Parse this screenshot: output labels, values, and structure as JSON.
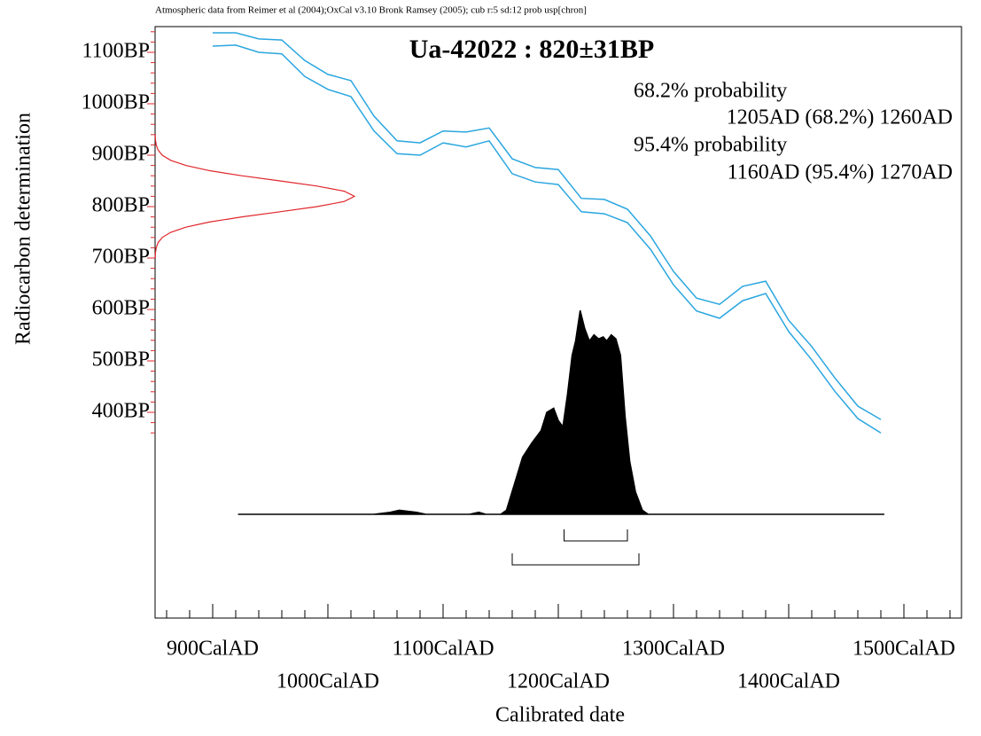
{
  "chart_data": {
    "type": "calibration",
    "title": "Ua-42022 : 820±31BP",
    "subtitle": "Atmospheric data from Reimer et al (2004);OxCal v3.10 Bronk Ramsey (2005); cub r:5 sd:12 prob usp[chron]",
    "x_label": "Calibrated date",
    "y_label": "Radiocarbon determination",
    "xlim": [
      850,
      1550
    ],
    "ylim": [
      0,
      1150
    ],
    "xticks": [
      {
        "value": 900,
        "label": "900CalAD"
      },
      {
        "value": 1000,
        "label": "1000CalAD"
      },
      {
        "value": 1100,
        "label": "1100CalAD"
      },
      {
        "value": 1200,
        "label": "1200CalAD"
      },
      {
        "value": 1300,
        "label": "1300CalAD"
      },
      {
        "value": 1400,
        "label": "1400CalAD"
      },
      {
        "value": 1500,
        "label": "1500CalAD"
      }
    ],
    "xminorticks": [
      860,
      880,
      920,
      940,
      960,
      980,
      1020,
      1040,
      1060,
      1080,
      1120,
      1140,
      1160,
      1180,
      1220,
      1240,
      1260,
      1280,
      1320,
      1340,
      1360,
      1380,
      1420,
      1440,
      1460,
      1480,
      1520,
      1540
    ],
    "yticks": [
      {
        "value": 400,
        "label": "400BP"
      },
      {
        "value": 500,
        "label": "500BP"
      },
      {
        "value": 600,
        "label": "600BP"
      },
      {
        "value": 700,
        "label": "700BP"
      },
      {
        "value": 800,
        "label": "800BP"
      },
      {
        "value": 900,
        "label": "900BP"
      },
      {
        "value": 1000,
        "label": "1000BP"
      },
      {
        "value": 1100,
        "label": "1100BP"
      }
    ],
    "yminorticks": [
      360,
      380,
      420,
      440,
      460,
      480,
      520,
      540,
      560,
      580,
      620,
      640,
      660,
      680,
      720,
      740,
      760,
      780,
      820,
      840,
      860,
      880,
      920,
      940,
      960,
      980,
      1020,
      1040,
      1060,
      1080,
      1120,
      1140
    ],
    "x": [
      900,
      920,
      940,
      960,
      980,
      1000,
      1020,
      1040,
      1060,
      1080,
      1100,
      1120,
      1140,
      1160,
      1180,
      1200,
      1220,
      1240,
      1260,
      1280,
      1300,
      1320,
      1340,
      1360,
      1380,
      1400,
      1420,
      1440,
      1460,
      1480
    ],
    "series": [
      {
        "color": "#2aa6df",
        "values": [
          1138,
          1138,
          1126,
          1124,
          1084,
          1057,
          1045,
          976,
          928,
          924,
          947,
          945,
          953,
          893,
          876,
          872,
          816,
          814,
          795,
          743,
          674,
          622,
          610,
          645,
          655,
          579,
          528,
          467,
          412,
          386
        ]
      },
      {
        "color": "#2aa6df",
        "values": [
          1112,
          1114,
          1100,
          1097,
          1053,
          1028,
          1014,
          947,
          903,
          900,
          924,
          916,
          928,
          864,
          848,
          843,
          790,
          786,
          769,
          717,
          648,
          597,
          583,
          617,
          631,
          557,
          502,
          441,
          388,
          360
        ]
      }
    ],
    "radiocarbon": {
      "color": "#e0262b",
      "bp": [
        700,
        710,
        720,
        730,
        740,
        750,
        760,
        770,
        780,
        790,
        800,
        810,
        820,
        830,
        840,
        850,
        860,
        870,
        880,
        890,
        900,
        910,
        920,
        930,
        940
      ],
      "probability": [
        0.001,
        0.002,
        0.006,
        0.015,
        0.036,
        0.078,
        0.154,
        0.272,
        0.435,
        0.626,
        0.812,
        0.949,
        1,
        0.949,
        0.812,
        0.626,
        0.435,
        0.272,
        0.154,
        0.078,
        0.036,
        0.015,
        0.006,
        0.002,
        0.001
      ]
    },
    "calibrated": {
      "color": "#000000",
      "x": [
        922,
        1040,
        1054,
        1062,
        1077,
        1085,
        1123,
        1131,
        1137,
        1150,
        1155,
        1162,
        1169,
        1177,
        1185,
        1190,
        1196,
        1200,
        1204,
        1208,
        1212,
        1215,
        1219,
        1223,
        1227,
        1231,
        1235,
        1239,
        1242,
        1246,
        1250,
        1254,
        1258,
        1262,
        1267,
        1273,
        1278,
        1483
      ],
      "values": [
        0,
        0,
        0.01,
        0.02,
        0.01,
        0,
        0,
        0.01,
        0,
        0,
        0.02,
        0.15,
        0.28,
        0.35,
        0.41,
        0.5,
        0.52,
        0.46,
        0.43,
        0.59,
        0.78,
        0.85,
        1,
        0.91,
        0.85,
        0.88,
        0.86,
        0.87,
        0.85,
        0.88,
        0.86,
        0.78,
        0.48,
        0.26,
        0.11,
        0.02,
        0,
        0
      ]
    },
    "ranges": [
      {
        "heading": "68.2% probability",
        "text": "1205AD (68.2%) 1260AD",
        "from": 1205,
        "to": 1260
      },
      {
        "heading": "95.4% probability",
        "text": "1160AD (95.4%) 1270AD",
        "from": 1160,
        "to": 1270
      }
    ]
  }
}
